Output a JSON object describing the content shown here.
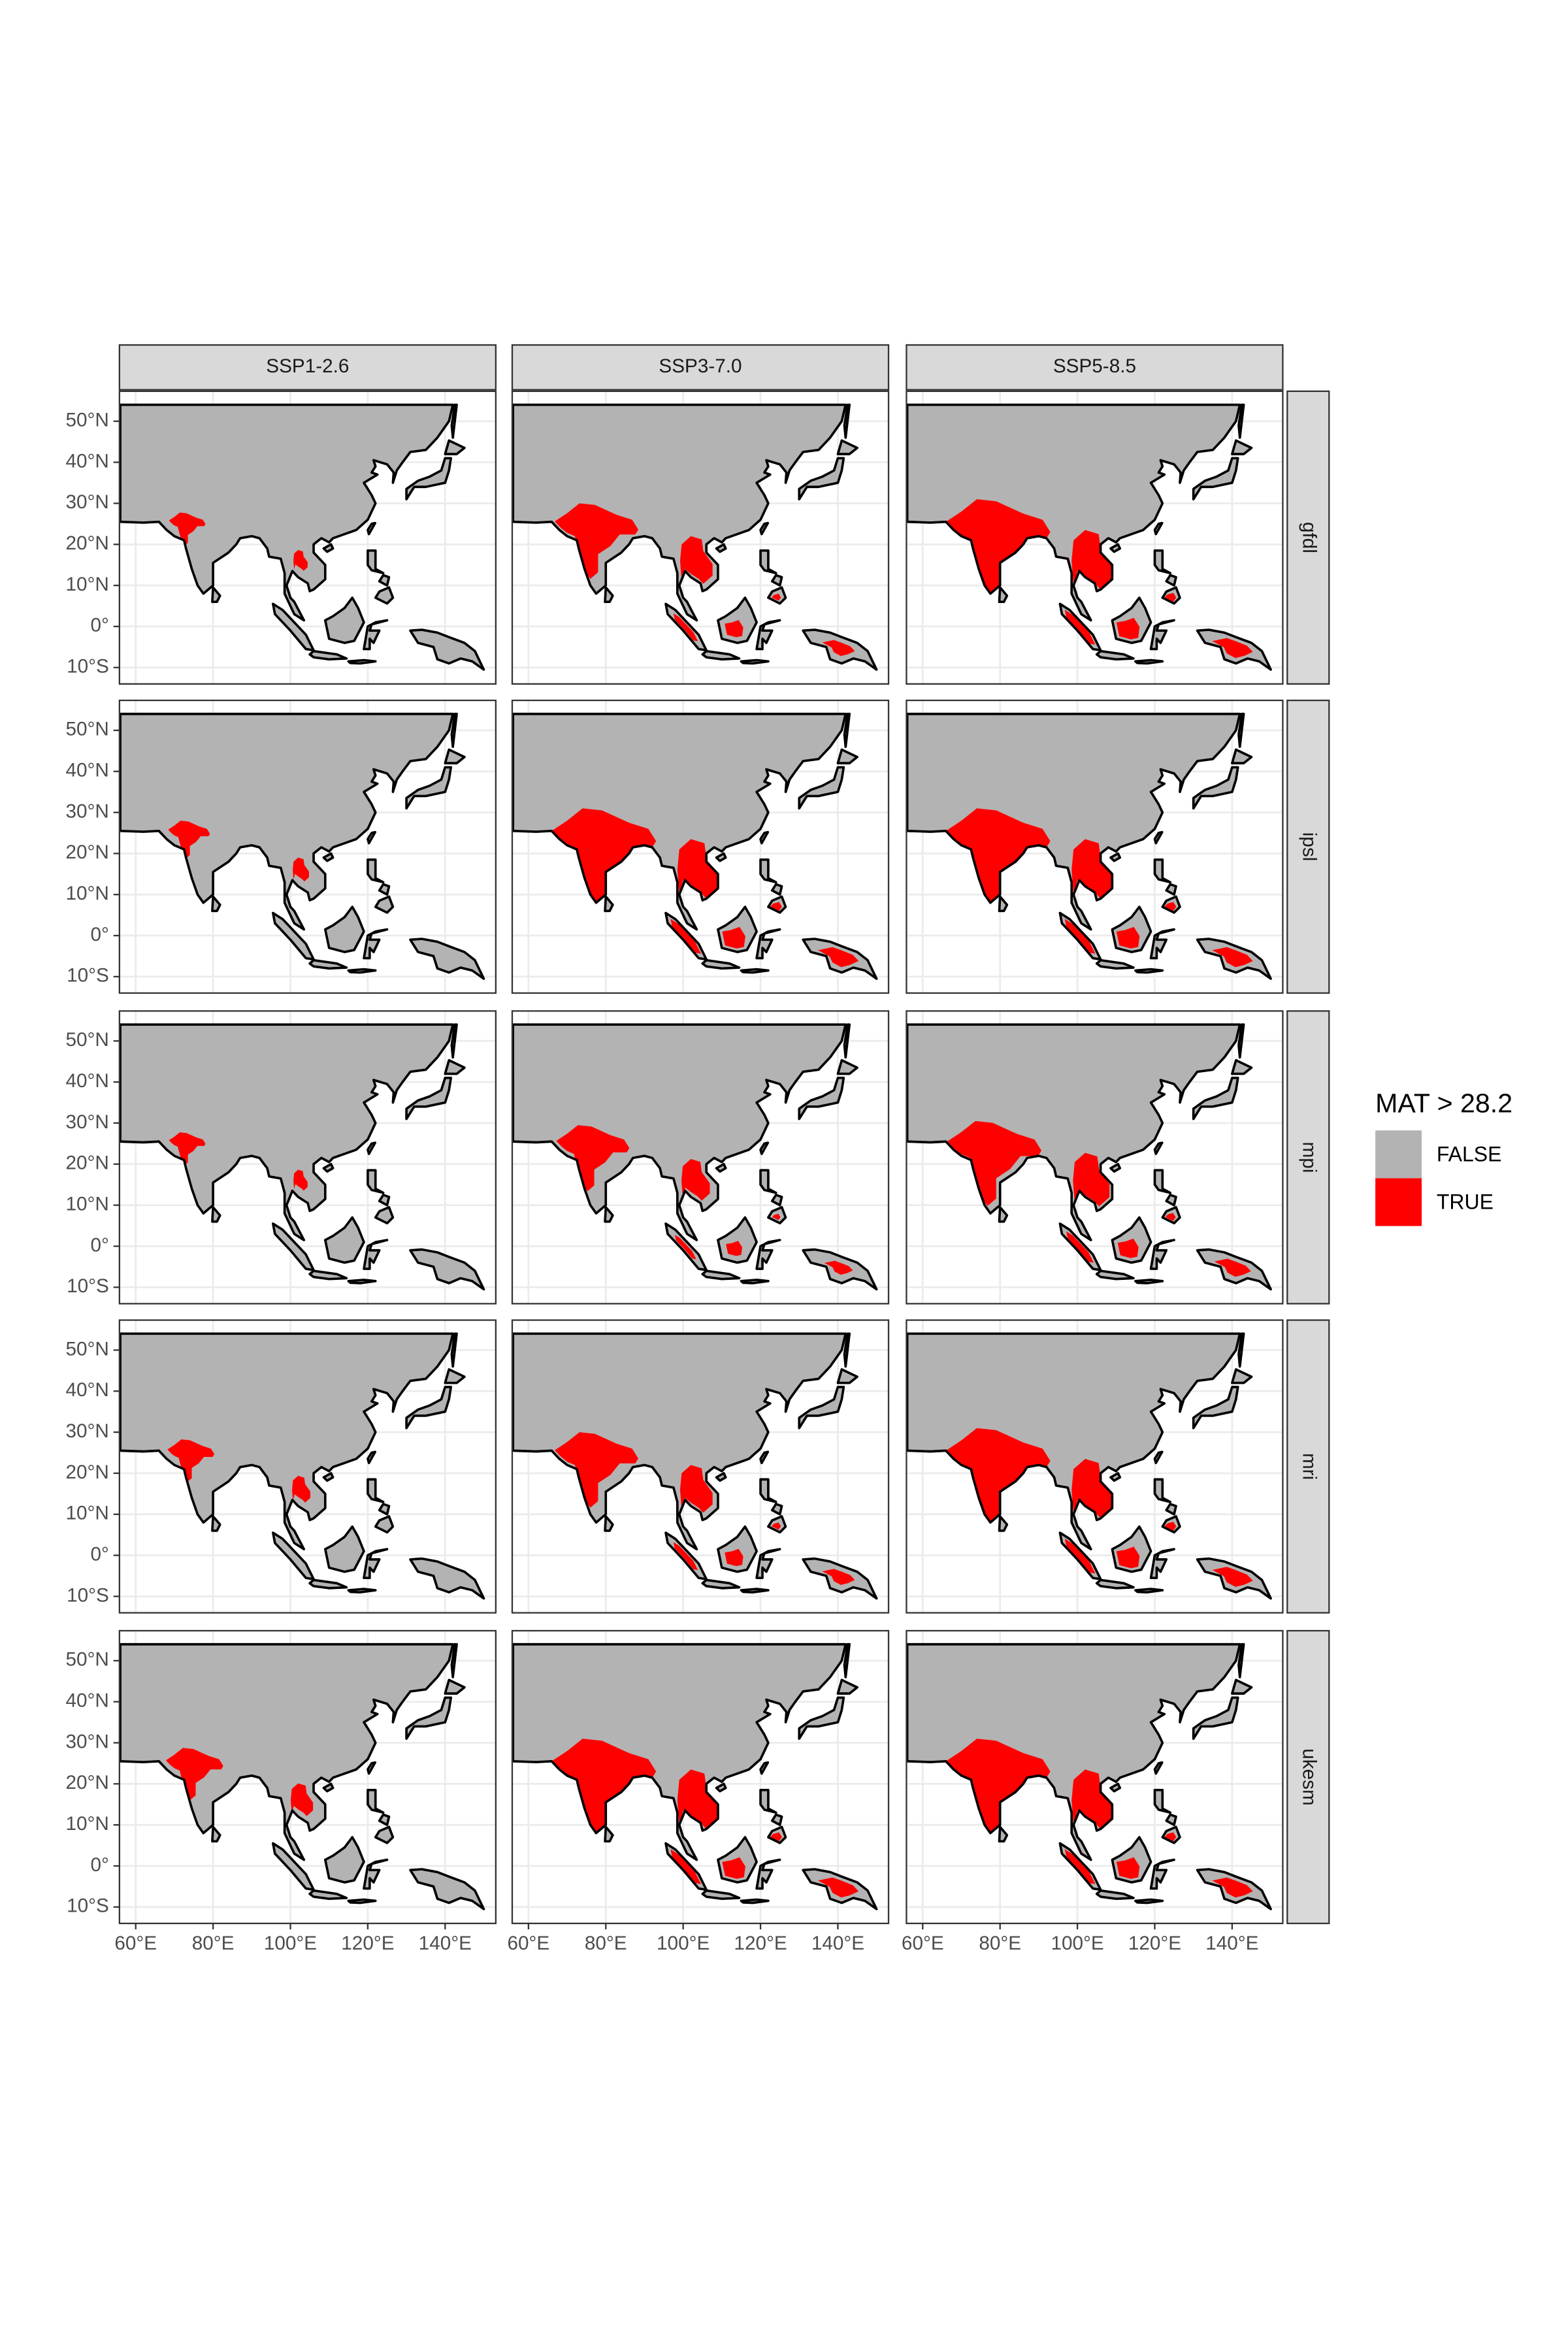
{
  "chart_data": {
    "type": "map",
    "columns": [
      "SSP1-2.6",
      "SSP3-7.0",
      "SSP5-8.5"
    ],
    "rows": [
      "gfdl",
      "ipsl",
      "mpi",
      "mri",
      "ukesm"
    ],
    "xlim": [
      55.8,
      153.1
    ],
    "ylim": [
      -14,
      57.3
    ],
    "xticks": [
      {
        "value": 60,
        "label": "60°E"
      },
      {
        "value": 80,
        "label": "80°E"
      },
      {
        "value": 100,
        "label": "100°E"
      },
      {
        "value": 120,
        "label": "120°E"
      },
      {
        "value": 140,
        "label": "140°E"
      }
    ],
    "yticks": [
      {
        "value": -10,
        "label": "10°S"
      },
      {
        "value": 0,
        "label": "0°"
      },
      {
        "value": 10,
        "label": "10°N"
      },
      {
        "value": 20,
        "label": "20°N"
      },
      {
        "value": 30,
        "label": "30°N"
      },
      {
        "value": 40,
        "label": "40°N"
      },
      {
        "value": 50,
        "label": "50°N"
      }
    ],
    "grid": true,
    "legend": {
      "title": "MAT > 28.2",
      "entries": [
        {
          "label": "FALSE",
          "color": "#b3b3b3"
        },
        {
          "label": "TRUE",
          "color": "#ff0000"
        }
      ]
    }
  }
}
